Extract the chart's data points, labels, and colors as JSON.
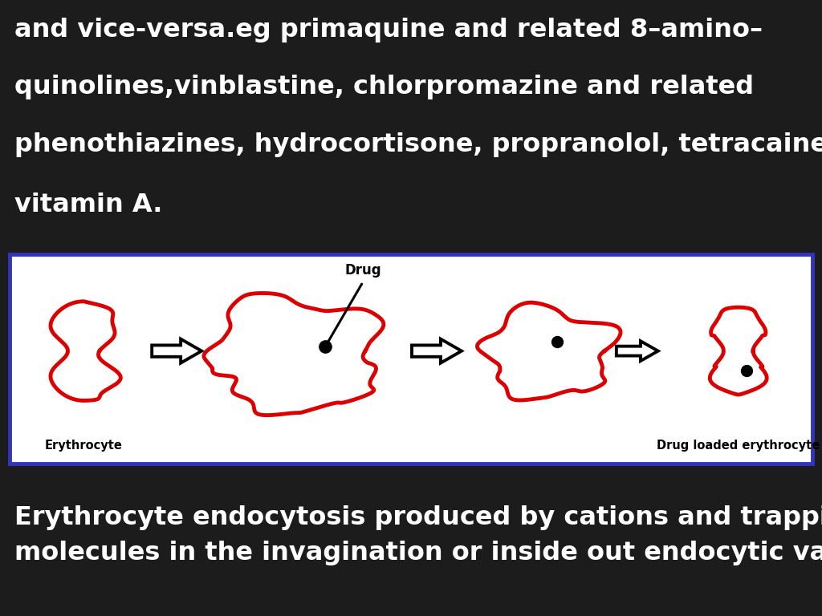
{
  "top_text_lines": [
    "and vice-versa.eg primaquine and related 8–amino–",
    "quinolines,vinblastine, chlorpromazine and related",
    "phenothiazines, hydrocortisone, propranolol, tetracaine, and",
    "vitamin A."
  ],
  "bottom_text": "Erythrocyte endocytosis produced by cations and trapping of\nmolecules in the invagination or inside out endocytic vacuoles.",
  "top_bg": "#1c1c1c",
  "bottom_bg": "#111111",
  "middle_bg": "#ffffff",
  "top_text_color": "#ffffff",
  "bottom_text_color": "#ffffff",
  "red_color": "#dd0000",
  "border_color": "#3333bb",
  "label_erythrocyte": "Erythrocyte",
  "label_drug_loaded": "Drug loaded erythrocyte",
  "label_drug": "Drug",
  "fig_width": 10.24,
  "fig_height": 7.68
}
